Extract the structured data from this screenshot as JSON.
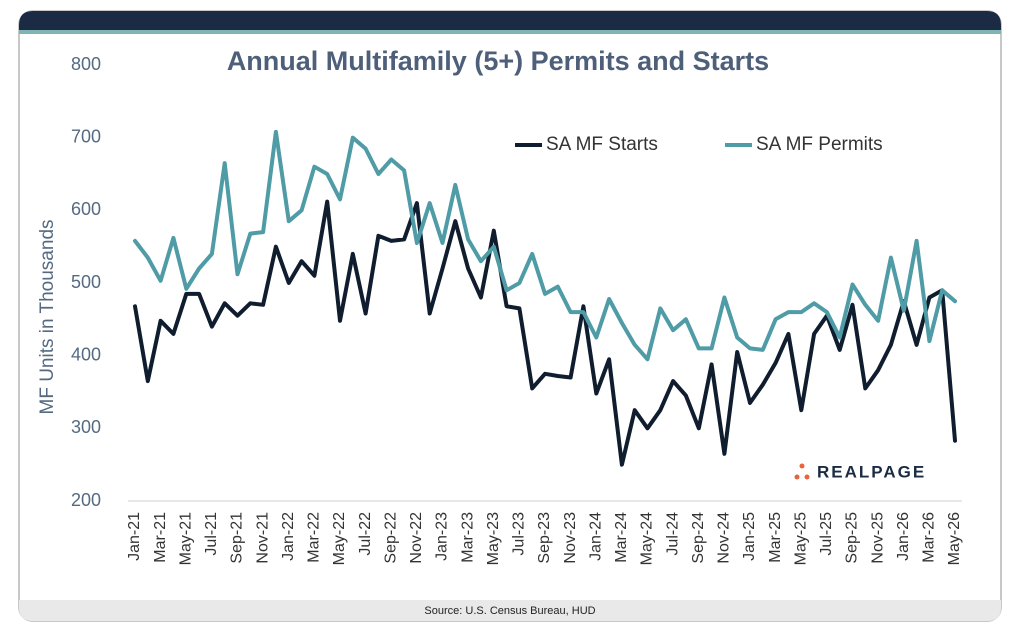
{
  "chart_data": {
    "type": "line",
    "title": "Annual Multifamily (5+) Permits and Starts",
    "y_label": "MF Units in Thousands",
    "source": "Source: U.S. Census Bureau, HUD",
    "logo": "REALPAGE",
    "categories": [
      "Jan-21",
      null,
      "Mar-21",
      null,
      "May-21",
      null,
      "Jul-21",
      null,
      "Sep-21",
      null,
      "Nov-21",
      null,
      "Jan-22",
      null,
      "Mar-22",
      null,
      "May-22",
      null,
      "Jul-22",
      null,
      "Sep-22",
      null,
      "Nov-22",
      null,
      "Jan-23",
      null,
      "Mar-23",
      null,
      "May-23",
      null,
      "Jul-23",
      null,
      "Sep-23",
      null,
      "Nov-23",
      null,
      "Jan-24",
      null,
      "Mar-24",
      null,
      "May-24",
      null,
      "Jul-24",
      null,
      "Sep-24",
      null,
      "Nov-24",
      null,
      "Jan-25",
      null,
      "Mar-25",
      null,
      "May-25",
      null,
      "Jul-25",
      null,
      "Sep-25",
      null,
      "Nov-25",
      null,
      "Jan-26",
      null,
      "Mar-26",
      null,
      "May-26"
    ],
    "series": [
      {
        "name": "SA MF Starts",
        "color": "#0f1d2e",
        "values": [
          468,
          365,
          448,
          430,
          485,
          485,
          440,
          472,
          455,
          472,
          470,
          550,
          500,
          530,
          510,
          612,
          448,
          540,
          458,
          565,
          558,
          560,
          610,
          458,
          520,
          585,
          520,
          480,
          572,
          468,
          465,
          355,
          375,
          372,
          370,
          468,
          348,
          395,
          250,
          325,
          300,
          325,
          365,
          345,
          300,
          388,
          265,
          405,
          335,
          360,
          390,
          430,
          325,
          430,
          455,
          408,
          470,
          355,
          380,
          415,
          475,
          415,
          480,
          490,
          283
        ]
      },
      {
        "name": "SA MF Permits",
        "color": "#4f9ba6",
        "values": [
          558,
          535,
          503,
          562,
          492,
          520,
          540,
          665,
          512,
          568,
          570,
          708,
          585,
          600,
          660,
          650,
          615,
          700,
          685,
          650,
          670,
          655,
          555,
          610,
          555,
          635,
          560,
          530,
          550,
          490,
          500,
          540,
          485,
          495,
          460,
          460,
          425,
          478,
          445,
          415,
          395,
          465,
          435,
          450,
          410,
          410,
          480,
          425,
          410,
          408,
          450,
          460,
          460,
          472,
          460,
          425,
          498,
          470,
          448,
          535,
          462,
          558,
          420,
          490,
          475
        ]
      }
    ],
    "ylim": [
      200,
      800
    ],
    "yticks": [
      200,
      300,
      400,
      500,
      600,
      700,
      800
    ],
    "grid": false
  }
}
